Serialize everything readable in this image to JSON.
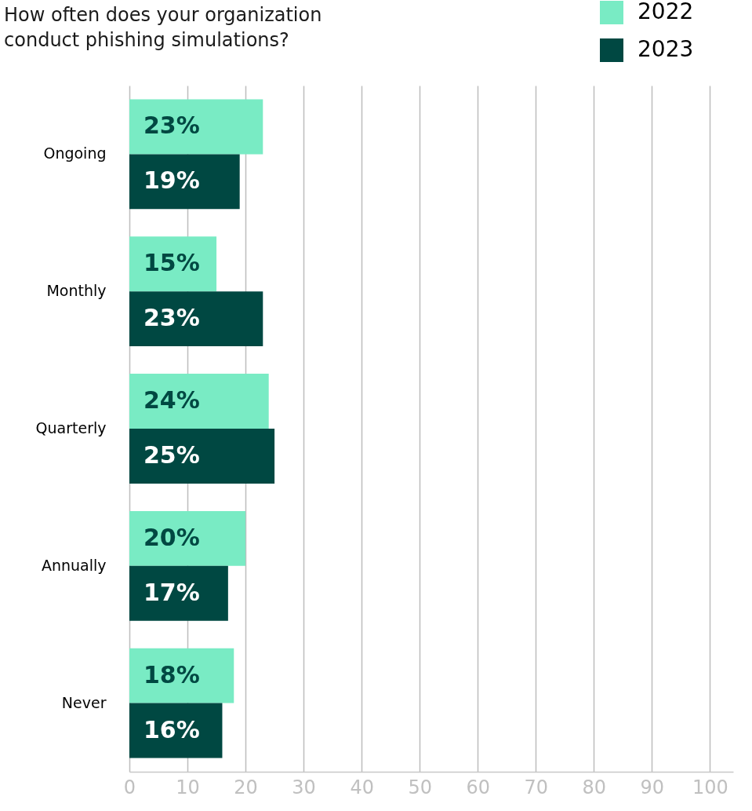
{
  "chart_data": {
    "type": "bar",
    "orientation": "horizontal",
    "title": "How often does your organization conduct phishing simulations?",
    "categories": [
      "Ongoing",
      "Monthly",
      "Quarterly",
      "Annually",
      "Never"
    ],
    "series": [
      {
        "name": "2022",
        "color": "#79ebc4",
        "values": [
          23,
          15,
          24,
          20,
          18
        ],
        "value_labels": [
          "23%",
          "15%",
          "24%",
          "20%",
          "18%"
        ]
      },
      {
        "name": "2023",
        "color": "#004842",
        "values": [
          19,
          23,
          25,
          17,
          16
        ],
        "value_labels": [
          "19%",
          "23%",
          "25%",
          "17%",
          "16%"
        ]
      }
    ],
    "xlim": [
      0,
      104
    ],
    "xticks": [
      0,
      10,
      20,
      30,
      40,
      50,
      60,
      70,
      80,
      90,
      100
    ],
    "grid": "x",
    "legend": "top right"
  }
}
